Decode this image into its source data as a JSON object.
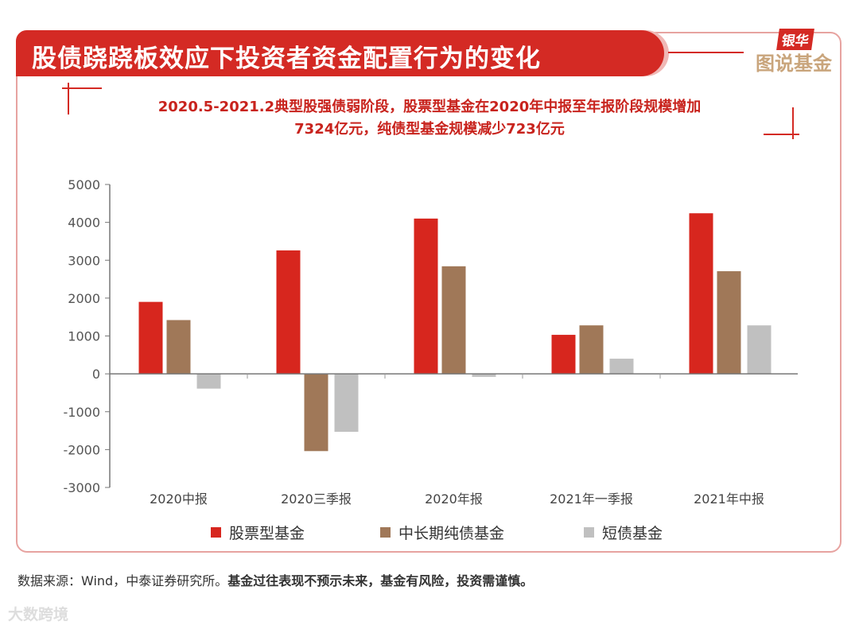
{
  "header": {
    "title": "股债跷跷板效应下投资者资金配置行为的变化",
    "logo_top": "银华",
    "logo_bottom": "图说基金"
  },
  "chart_data": {
    "type": "bar",
    "title": "2020.5-2021.2典型股强债弱阶段，股票型基金在2020年中报至年报阶段规模增加",
    "title_line2": "7324亿元，纯债型基金规模减少723亿元",
    "categories": [
      "2020中报",
      "2020三季报",
      "2020年报",
      "2021年一季报",
      "2021年中报"
    ],
    "series": [
      {
        "name": "股票型基金",
        "color": "#d7261e",
        "values": [
          1900,
          3260,
          4100,
          1030,
          4240
        ]
      },
      {
        "name": "中长期纯债基金",
        "color": "#a07858",
        "values": [
          1420,
          -2040,
          2840,
          1280,
          2710
        ]
      },
      {
        "name": "短债基金",
        "color": "#c0c0c0",
        "values": [
          -390,
          -1530,
          -80,
          400,
          1280
        ]
      }
    ],
    "ylim": [
      -3000,
      5000
    ],
    "yticks": [
      "5000",
      "4000",
      "3000",
      "2000",
      "1000",
      "0",
      "-1000",
      "-2000",
      "-3000"
    ],
    "grid": false,
    "legend": "bottom"
  },
  "footer": {
    "source": "数据来源：Wind，中泰证券研究所。",
    "disclaimer": "基金过往表现不预示未来，基金有风险，投资需谨慎。"
  },
  "watermark": "大数跨境"
}
